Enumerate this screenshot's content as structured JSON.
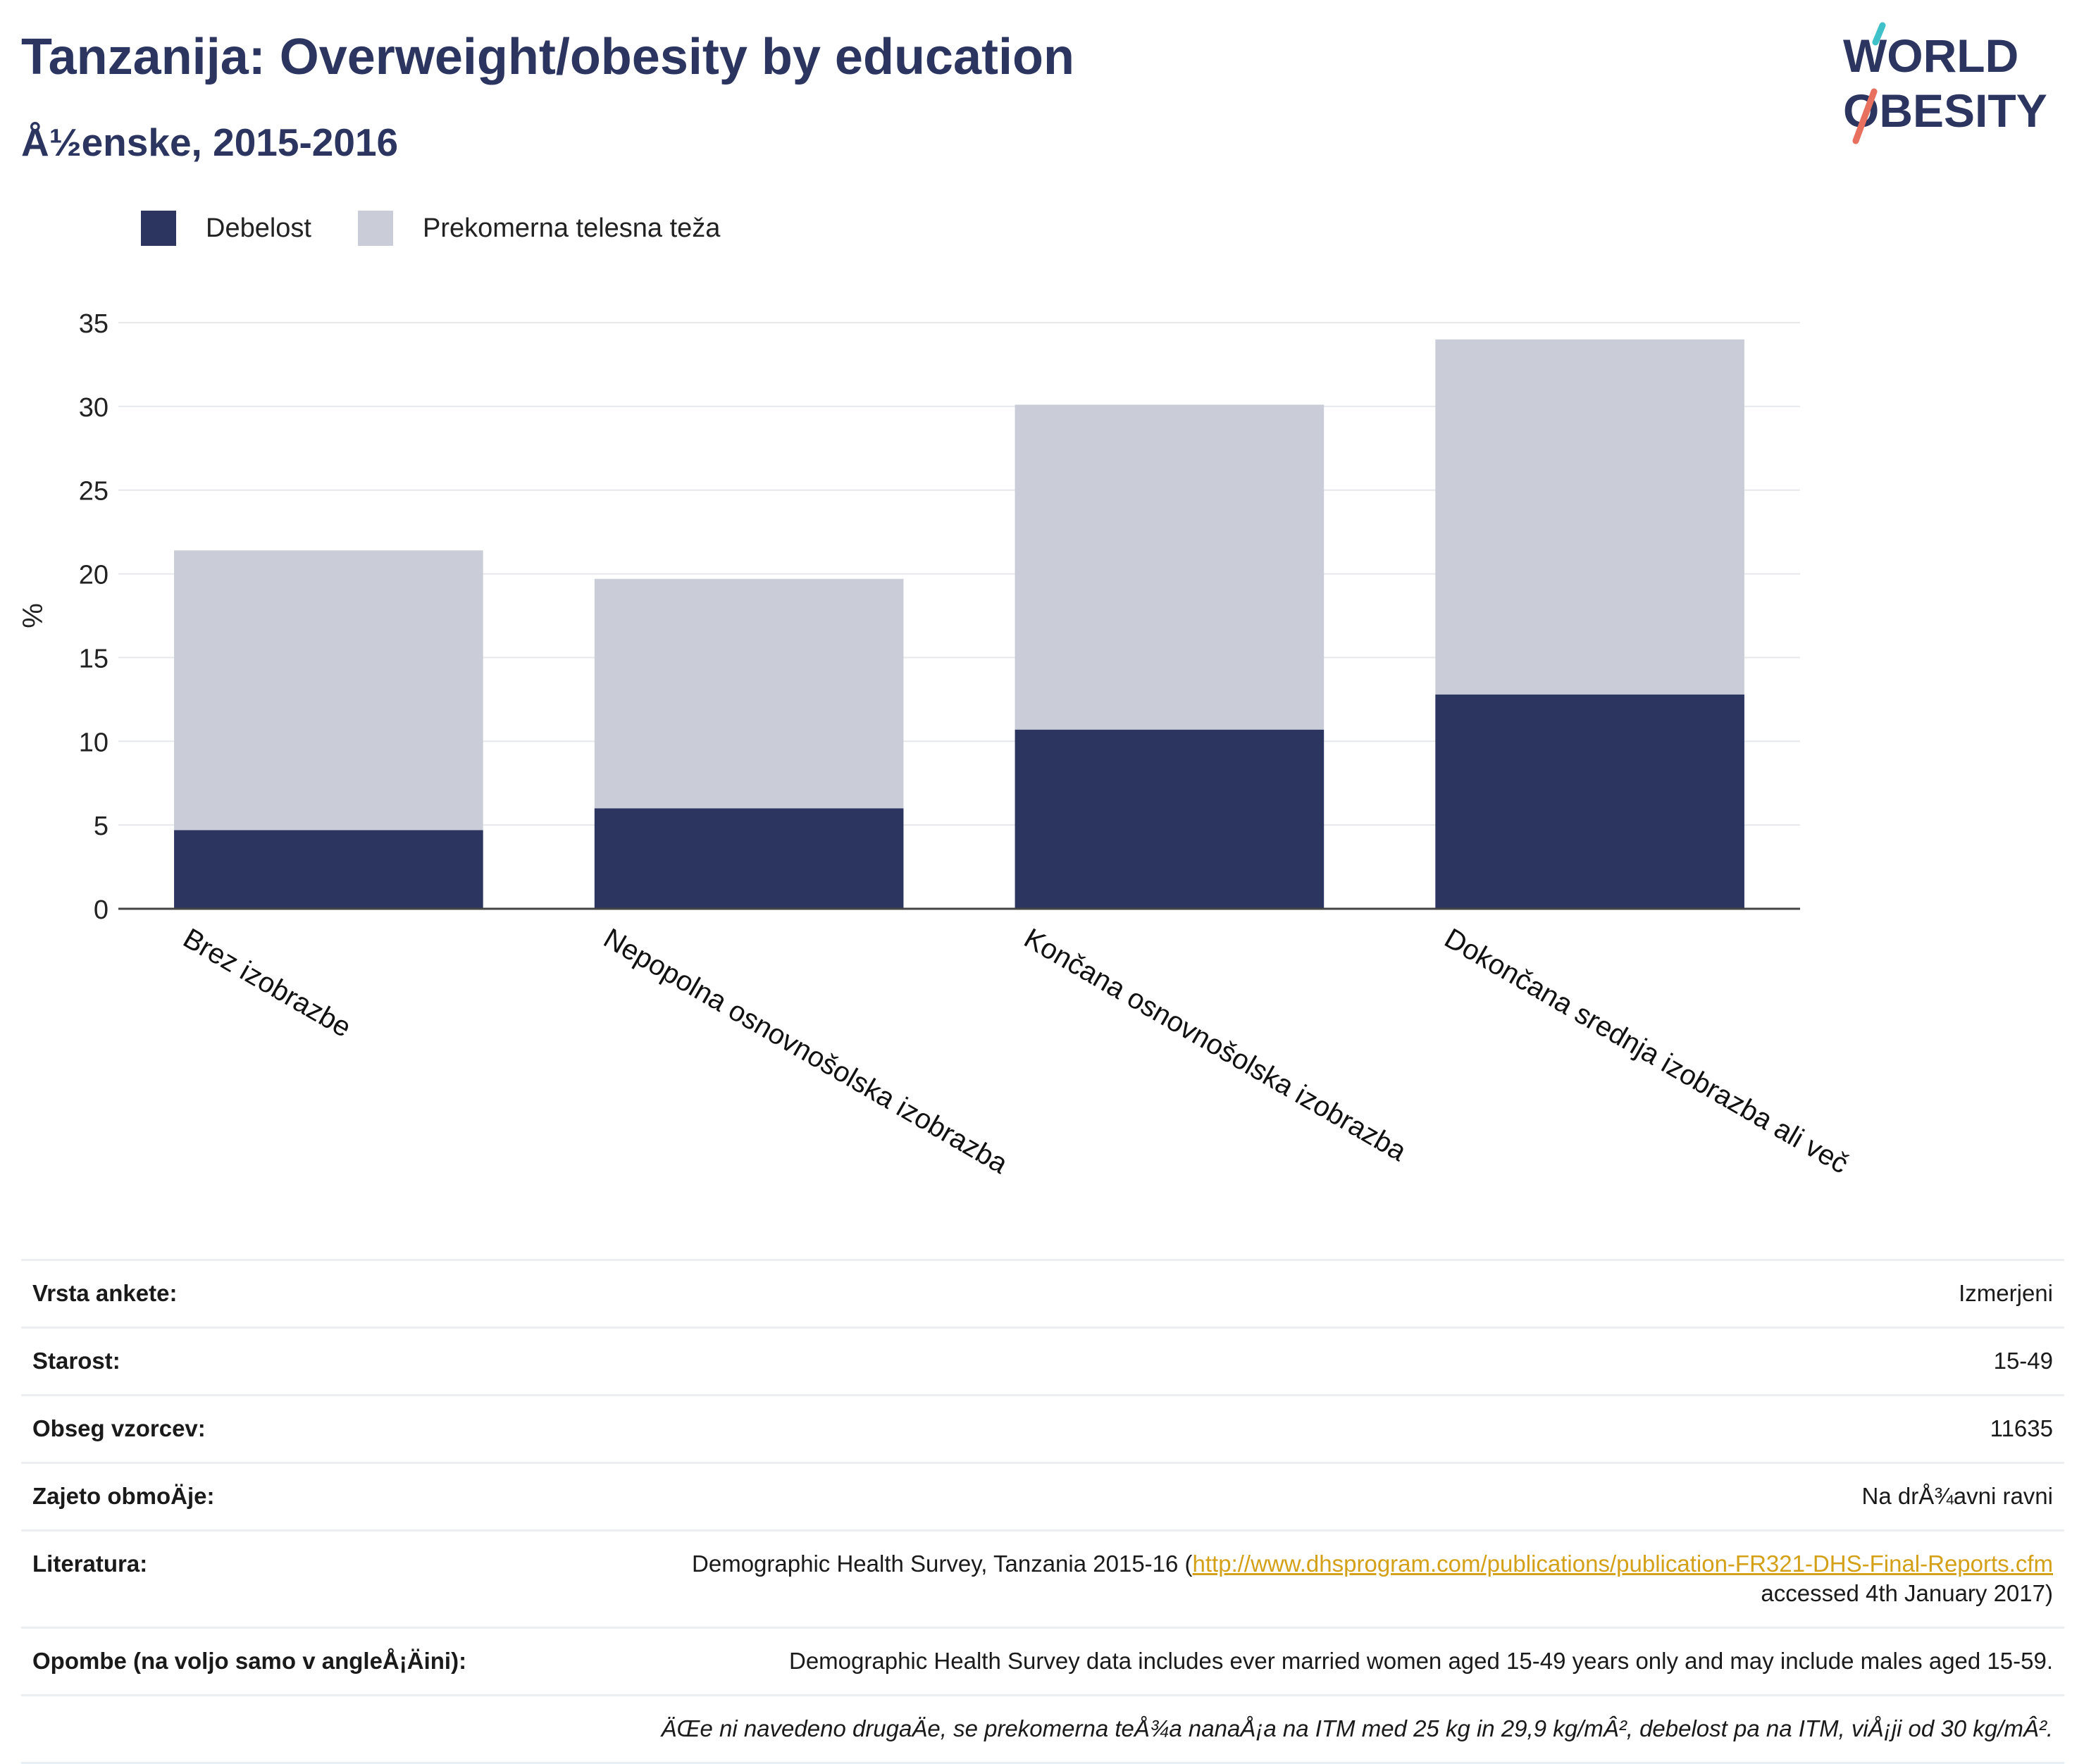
{
  "title": "Tanzanija: Overweight/obesity by education",
  "subtitle": "Å½enske, 2015-2016",
  "logo": {
    "line1": "WORLD",
    "line2": "OBESITY"
  },
  "colors": {
    "obesity": "#2b3560",
    "overweight": "#cacdd8",
    "title": "#2b3560",
    "link": "#d4a017",
    "logo_red": "#e8705f",
    "logo_teal": "#3ec1c9"
  },
  "legend": [
    {
      "label": "Debelost",
      "color": "#2b3560"
    },
    {
      "label": "Prekomerna telesna teža",
      "color": "#cacdd8"
    }
  ],
  "chart_data": {
    "type": "bar",
    "stacked": true,
    "categories": [
      "Brez izobrazbe",
      "Nepopolna osnovnošolska izobrazba",
      "Končana osnovnošolska izobrazba",
      "Dokončana srednja izobrazba ali več"
    ],
    "series": [
      {
        "name": "Debelost",
        "values": [
          4.7,
          6.0,
          10.7,
          12.8
        ]
      },
      {
        "name": "Prekomerna telesna teža",
        "values": [
          16.7,
          13.7,
          19.4,
          21.2
        ]
      }
    ],
    "ylabel": "%",
    "ylim": [
      0,
      35
    ],
    "yticks": [
      0,
      5,
      10,
      15,
      20,
      25,
      30,
      35
    ],
    "grid": true,
    "legend_position": "top-left"
  },
  "info": {
    "rows": [
      {
        "label": "Vrsta ankete:",
        "value": "Izmerjeni"
      },
      {
        "label": "Starost:",
        "value": "15-49"
      },
      {
        "label": "Obseg vzorcev:",
        "value": "11635"
      },
      {
        "label": "Zajeto obmoÄje:",
        "value": "Na drÅ¾avni ravni"
      }
    ],
    "literature": {
      "label": "Literatura:",
      "prefix": "Demographic Health Survey, Tanzania 2015-16 (",
      "link": "http://www.dhsprogram.com/publications/publication-FR321-DHS-Final-Reports.cfm",
      "suffix": "accessed 4th January 2017)"
    },
    "notes": {
      "label": "Opombe (na voljo samo v angleÅ¡Äini):",
      "value": "Demographic Health Survey data includes ever married women aged 15-49 years only and may include males aged 15-59."
    },
    "footnote": "ÄŒe ni navedeno drugaÄe, se prekomerna teÅ¾a nanaÅ¡a na ITM med 25 kg in 29,9 kg/mÂ², debelost pa na ITM, viÅ¡ji od 30 kg/mÂ²."
  }
}
